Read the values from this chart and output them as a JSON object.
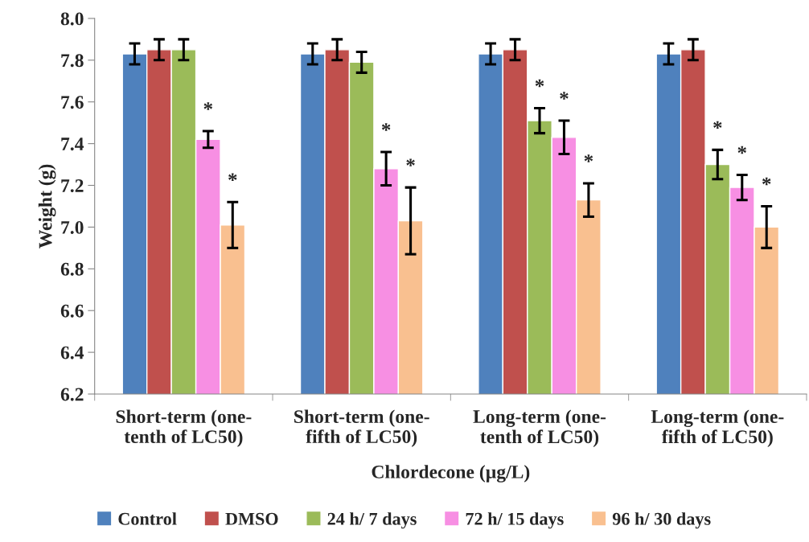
{
  "chart_data": {
    "type": "bar",
    "xlabel": "Chlordecone (µg/L)",
    "ylabel": "Weight (g)",
    "categories": [
      "Short-term (one-\ntenth of LC50)",
      "Short-term (one-\nfifth of LC50)",
      "Long-term (one-\ntenth of LC50)",
      "Long-term (one-\nfifth of LC50)"
    ],
    "series": [
      {
        "name": "Control",
        "color": "#4f81bd",
        "values": [
          7.83,
          7.83,
          7.83,
          7.83
        ],
        "errors": [
          0.05,
          0.05,
          0.05,
          0.05
        ]
      },
      {
        "name": "DMSO",
        "color": "#c0504d",
        "values": [
          7.85,
          7.85,
          7.85,
          7.85
        ],
        "errors": [
          0.05,
          0.05,
          0.05,
          0.05
        ]
      },
      {
        "name": "24 h/ 7 days",
        "color": "#9bbb59",
        "values": [
          7.85,
          7.79,
          7.51,
          7.3
        ],
        "errors": [
          0.05,
          0.05,
          0.06,
          0.07
        ],
        "value_labels": [
          null,
          null,
          "*",
          "*"
        ]
      },
      {
        "name": "72 h/ 15 days",
        "color": "#f78fe3",
        "values": [
          7.42,
          7.28,
          7.43,
          7.19
        ],
        "errors": [
          0.04,
          0.08,
          0.08,
          0.06
        ],
        "value_labels": [
          "*",
          "*",
          "*",
          "*"
        ]
      },
      {
        "name": "96 h/ 30 days",
        "color": "#f9c090",
        "values": [
          7.01,
          7.03,
          7.13,
          7.0
        ],
        "errors": [
          0.11,
          0.16,
          0.08,
          0.1
        ],
        "value_labels": [
          "*",
          "*",
          "*",
          "*"
        ]
      }
    ],
    "ylim": [
      6.2,
      8.0
    ],
    "yticks": [
      {
        "value": 6.2,
        "label": "6.2"
      },
      {
        "value": 6.4,
        "label": "6.4"
      },
      {
        "value": 6.6,
        "label": "6.6"
      },
      {
        "value": 6.8,
        "label": "6.8"
      },
      {
        "value": 7.0,
        "label": "7.0"
      },
      {
        "value": 7.2,
        "label": "7.2"
      },
      {
        "value": 7.4,
        "label": "7.4"
      },
      {
        "value": 7.6,
        "label": "7.6"
      },
      {
        "value": 7.8,
        "label": "7.8"
      },
      {
        "value": 8.0,
        "label": "8.0"
      }
    ],
    "grid": false,
    "legend": "bottom"
  }
}
